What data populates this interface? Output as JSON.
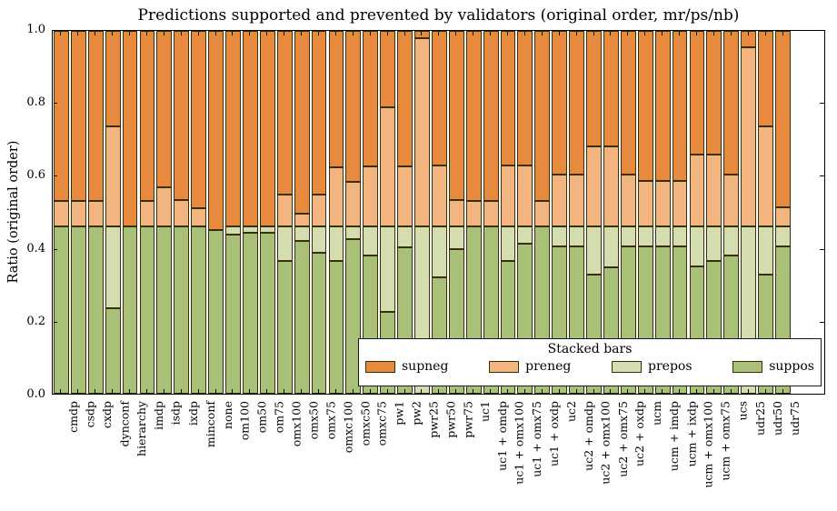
{
  "figure": {
    "title": "Predictions supported and prevented by validators (original order, mr/ps/nb)",
    "ylabel": "Ratio (original order)"
  },
  "axes": {
    "yticks": [
      "0.0",
      "0.2",
      "0.4",
      "0.6",
      "0.8",
      "1.0"
    ],
    "ylim": [
      0,
      1
    ]
  },
  "legend": {
    "title": "Stacked bars",
    "entries": [
      {
        "label": "supneg",
        "color": "#e78a3d"
      },
      {
        "label": "preneg",
        "color": "#f3b57f"
      },
      {
        "label": "prepos",
        "color": "#d4ddb0"
      },
      {
        "label": "suppos",
        "color": "#a8c078"
      }
    ]
  },
  "chart_data": {
    "type": "bar",
    "stacked": true,
    "title": "Predictions supported and prevented by validators (original order, mr/ps/nb)",
    "xlabel": "",
    "ylabel": "Ratio (original order)",
    "ylim": [
      0,
      1
    ],
    "grid": false,
    "legend_position": "lower right",
    "bar_edge_color": "#3a3008",
    "categories": [
      "cmdp",
      "csdp",
      "cxdp",
      "dynconf",
      "hierarchy",
      "imdp",
      "isdp",
      "ixdp",
      "minconf",
      "none",
      "om100",
      "om50",
      "om75",
      "omx100",
      "omx50",
      "omx75",
      "omxc100",
      "omxc50",
      "omxc75",
      "pw1",
      "pw2",
      "pwr25",
      "pwr50",
      "pwr75",
      "uc1",
      "uc1 + omdp",
      "uc1 + omx100",
      "uc1 + omx75",
      "uc1 + oxdp",
      "uc2",
      "uc2 + omdp",
      "uc2 + omx100",
      "uc2 + omx75",
      "uc2 + oxdp",
      "ucm",
      "ucm + imdp",
      "ucm + ixdp",
      "ucm + omx100",
      "ucm + omx75",
      "ucs",
      "udr25",
      "udr50",
      "udr75"
    ],
    "series": [
      {
        "name": "suppos",
        "color": "#a8c078",
        "values": [
          0.46,
          0.46,
          0.46,
          0.236,
          0.46,
          0.46,
          0.46,
          0.46,
          0.46,
          0.45,
          0.438,
          0.443,
          0.443,
          0.367,
          0.421,
          0.388,
          0.367,
          0.426,
          0.381,
          0.225,
          0.403,
          0.0,
          0.32,
          0.399,
          0.46,
          0.46,
          0.367,
          0.413,
          0.46,
          0.405,
          0.405,
          0.328,
          0.348,
          0.405,
          0.405,
          0.405,
          0.405,
          0.351,
          0.365,
          0.381,
          0.0,
          0.328,
          0.405
        ]
      },
      {
        "name": "prepos",
        "color": "#d4ddb0",
        "values": [
          0,
          0,
          0,
          0.224,
          0,
          0,
          0,
          0,
          0,
          0,
          0.022,
          0.017,
          0.017,
          0.093,
          0.039,
          0.072,
          0.093,
          0.034,
          0.079,
          0.235,
          0.057,
          0.46,
          0.14,
          0.061,
          0,
          0,
          0.093,
          0.047,
          0,
          0.055,
          0.055,
          0.132,
          0.112,
          0.055,
          0.055,
          0.055,
          0.055,
          0.109,
          0.095,
          0.079,
          0.46,
          0.132,
          0.055
        ]
      },
      {
        "name": "preneg",
        "color": "#f3b57f",
        "values": [
          0.071,
          0.071,
          0.071,
          0.276,
          0,
          0.071,
          0.109,
          0.075,
          0.051,
          0,
          0,
          0,
          0,
          0.09,
          0.036,
          0.09,
          0.163,
          0.123,
          0.166,
          0.33,
          0.166,
          0.52,
          0.168,
          0.073,
          0.072,
          0.072,
          0.168,
          0.168,
          0.072,
          0.144,
          0.144,
          0.221,
          0.221,
          0.144,
          0.126,
          0.126,
          0.126,
          0.2,
          0.2,
          0.144,
          0.495,
          0.276,
          0.055
        ]
      },
      {
        "name": "supneg",
        "color": "#e78a3d",
        "values": [
          0.469,
          0.469,
          0.469,
          0.264,
          0.54,
          0.469,
          0.431,
          0.465,
          0.489,
          0.55,
          0.54,
          0.54,
          0.54,
          0.45,
          0.504,
          0.45,
          0.377,
          0.417,
          0.374,
          0.21,
          0.374,
          0.02,
          0.372,
          0.467,
          0.468,
          0.468,
          0.372,
          0.372,
          0.468,
          0.396,
          0.396,
          0.319,
          0.319,
          0.396,
          0.414,
          0.414,
          0.414,
          0.34,
          0.34,
          0.396,
          0.045,
          0.264,
          0.485
        ]
      }
    ]
  }
}
